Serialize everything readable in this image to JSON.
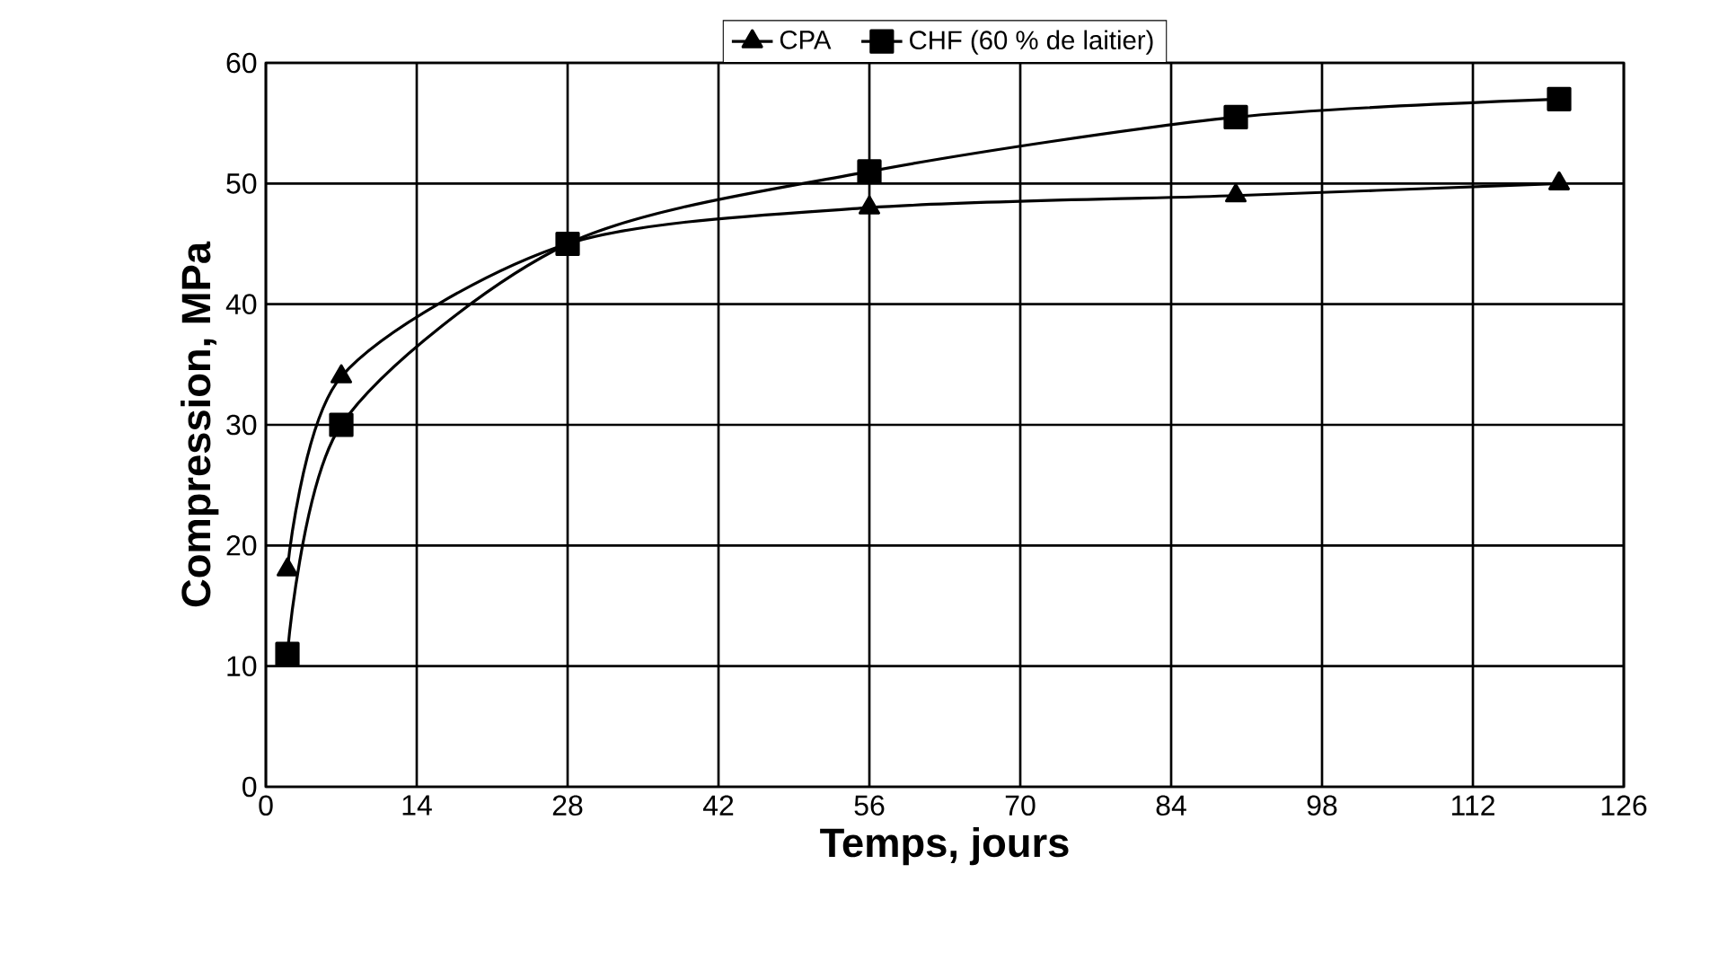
{
  "chart_data": {
    "type": "line",
    "xlabel": "Temps, jours",
    "ylabel": "Compression, MPa",
    "series": [
      {
        "name": "CPA",
        "color": "#000000",
        "marker": "triangle",
        "x": [
          2,
          7,
          28,
          56,
          90,
          120
        ],
        "values": [
          18,
          34,
          45,
          48,
          49,
          50
        ]
      },
      {
        "name": "CHF (60 % de laitier)",
        "color": "#000000",
        "marker": "square",
        "x": [
          2,
          7,
          28,
          56,
          90,
          120
        ],
        "values": [
          11,
          30,
          45,
          51,
          55.5,
          57
        ]
      }
    ],
    "xlim": [
      0,
      126
    ],
    "xticks": [
      0,
      14,
      28,
      42,
      56,
      70,
      84,
      98,
      112,
      126
    ],
    "ylim": [
      0,
      60
    ],
    "yticks": [
      0,
      10,
      20,
      30,
      40,
      50,
      60
    ],
    "grid": true,
    "legend": "top",
    "line_style": "solid"
  }
}
